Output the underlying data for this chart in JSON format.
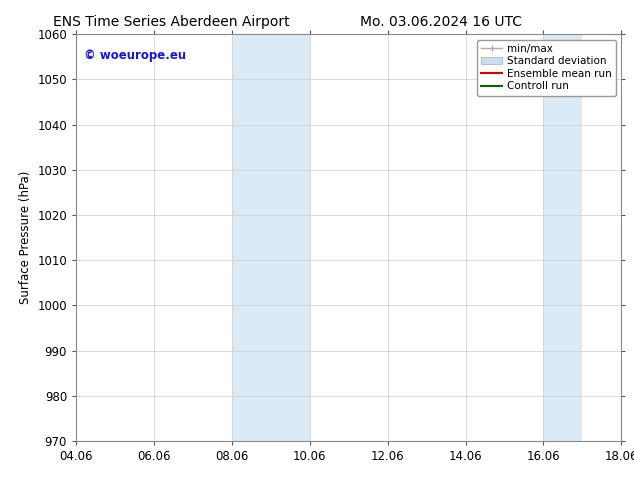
{
  "title_left": "ENS Time Series Aberdeen Airport",
  "title_right": "Mo. 03.06.2024 16 UTC",
  "ylabel": "Surface Pressure (hPa)",
  "xlabel": "",
  "ylim": [
    970,
    1060
  ],
  "yticks": [
    970,
    980,
    990,
    1000,
    1010,
    1020,
    1030,
    1040,
    1050,
    1060
  ],
  "xtick_labels": [
    "04.06",
    "06.06",
    "08.06",
    "10.06",
    "12.06",
    "14.06",
    "16.06",
    "18.06"
  ],
  "xtick_positions": [
    0,
    2,
    4,
    6,
    8,
    10,
    12,
    14
  ],
  "xlim": [
    0,
    14
  ],
  "shaded_regions": [
    {
      "x_start": 4,
      "x_end": 6,
      "color": "#daeaf7"
    },
    {
      "x_start": 12,
      "x_end": 13,
      "color": "#daeaf7"
    }
  ],
  "watermark_text": "© woeurope.eu",
  "watermark_color": "#1515dd",
  "background_color": "#ffffff",
  "plot_bg_color": "#ffffff",
  "grid_color": "#cccccc",
  "title_fontsize": 10,
  "tick_fontsize": 8.5,
  "ylabel_fontsize": 8.5,
  "legend_fontsize": 7.5
}
